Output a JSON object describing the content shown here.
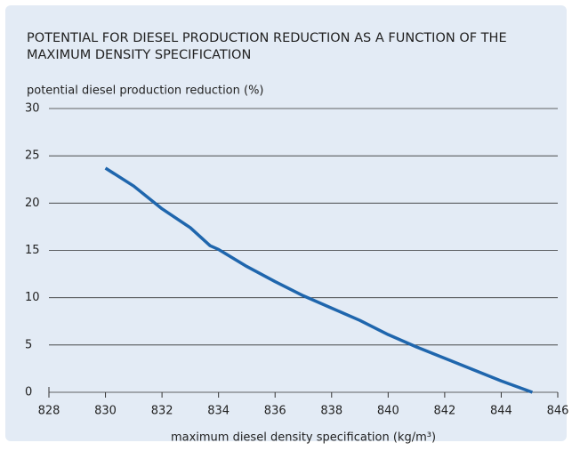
{
  "chart_data": {
    "type": "line",
    "title": "POTENTIAL FOR DIESEL PRODUCTION REDUCTION AS A FUNCTION OF THE MAXIMUM DENSITY SPECIFICATION",
    "y_label": "potential diesel production reduction (%)",
    "x_label": "maximum diesel density specification (kg/m³)",
    "x": [
      830,
      831,
      832,
      833,
      833.7,
      834,
      835,
      836,
      837,
      838,
      839,
      840,
      841,
      842,
      843,
      844,
      845.1
    ],
    "series": [
      {
        "color": "#1f66ad",
        "values": [
          23.7,
          21.8,
          19.4,
          17.4,
          15.5,
          15.1,
          13.3,
          11.7,
          10.2,
          8.9,
          7.6,
          6.1,
          4.8,
          3.6,
          2.4,
          1.2,
          0
        ]
      }
    ],
    "xlim": [
      828,
      846
    ],
    "xticks": [
      828,
      830,
      832,
      834,
      836,
      838,
      840,
      842,
      844,
      846
    ],
    "ylim": [
      0,
      30
    ],
    "yticks": [
      0,
      5,
      10,
      15,
      20,
      25,
      30
    ],
    "grid": true
  }
}
